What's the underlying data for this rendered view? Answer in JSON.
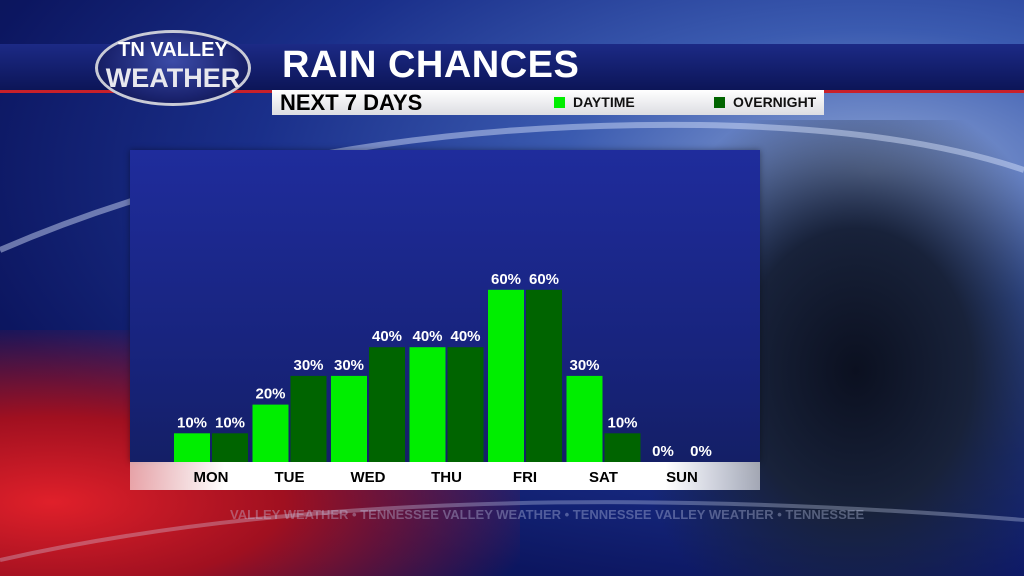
{
  "logo": {
    "line1": "TN VALLEY",
    "line2": "WEATHER"
  },
  "header": {
    "title": "RAIN CHANCES",
    "subtitle": "NEXT 7 DAYS"
  },
  "watermark": "VALLEY WEATHER • TENNESSEE VALLEY WEATHER • TENNESSEE VALLEY WEATHER • TENNESSEE",
  "chart_data": {
    "type": "bar",
    "title": "RAIN CHANCES",
    "subtitle": "NEXT 7 DAYS",
    "categories": [
      "MON",
      "TUE",
      "WED",
      "THU",
      "FRI",
      "SAT",
      "SUN"
    ],
    "series": [
      {
        "name": "DAYTIME",
        "color": "#00ee00",
        "values": [
          10,
          20,
          30,
          40,
          60,
          30,
          0
        ]
      },
      {
        "name": "OVERNIGHT",
        "color": "#006400",
        "values": [
          10,
          30,
          40,
          40,
          60,
          10,
          0
        ]
      }
    ],
    "unit": "%",
    "ylim": [
      0,
      100
    ],
    "grid": false,
    "legend": "top-right",
    "data_labels": true
  }
}
